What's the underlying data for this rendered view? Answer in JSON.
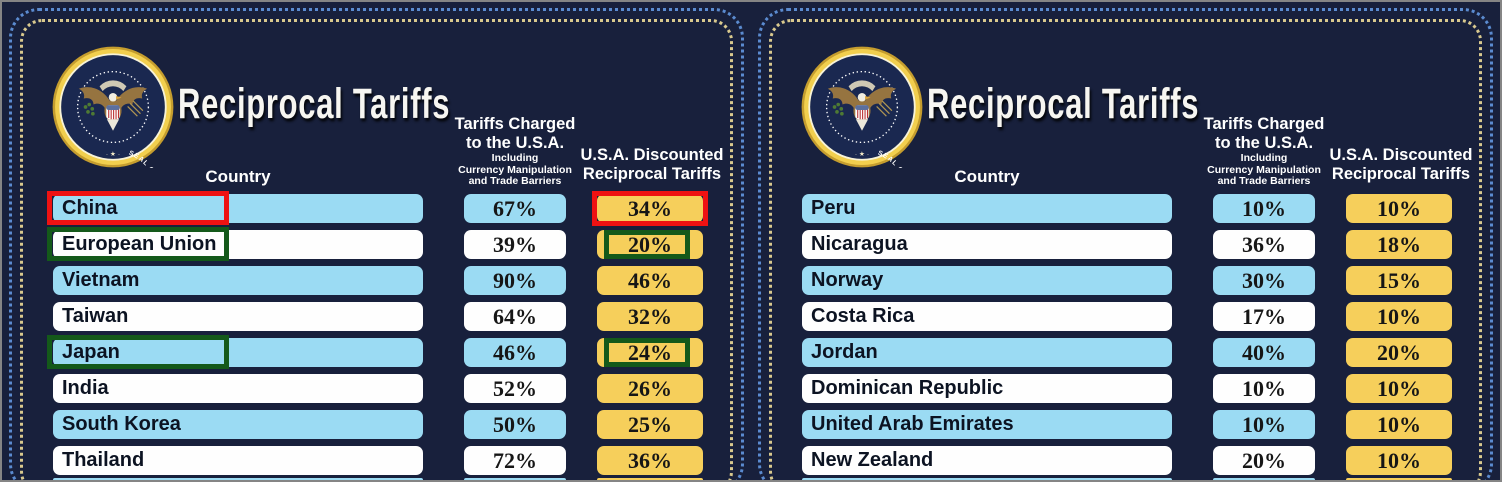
{
  "colors": {
    "background": "#18203c",
    "row_blue": "#9bdbf3",
    "row_white": "#fefefe",
    "tariff_yellow": "#f6cf5b",
    "dot_border_blue": "#5b8bd0",
    "dot_border_gold": "#d9c98e",
    "annotation_red": "#ee1212",
    "annotation_green": "#14591a",
    "seal_gold": "#f2cf4e"
  },
  "seal": {
    "ring_text": "SEAL OF THE PRESIDENT OF THE UNITED STATES",
    "ring_separator": "· ★ ·"
  },
  "panels": [
    {
      "title": "Reciprocal Tariffs",
      "columns": {
        "country": "Country",
        "charged_line1": "Tariffs Charged",
        "charged_line2": "to the U.S.A.",
        "charged_sub1": "Including",
        "charged_sub2": "Currency Manipulation",
        "charged_sub3": "and Trade Barriers",
        "discounted_line1": "U.S.A. Discounted",
        "discounted_line2": "Reciprocal Tariffs"
      },
      "rows": [
        {
          "country": "China",
          "charged": "67%",
          "discounted": "34%",
          "style": "blue",
          "country_highlight": "red",
          "discounted_highlight": "red"
        },
        {
          "country": "European Union",
          "charged": "39%",
          "discounted": "20%",
          "style": "white",
          "country_highlight": "green",
          "discounted_highlight": "green"
        },
        {
          "country": "Vietnam",
          "charged": "90%",
          "discounted": "46%",
          "style": "blue",
          "country_highlight": null,
          "discounted_highlight": null
        },
        {
          "country": "Taiwan",
          "charged": "64%",
          "discounted": "32%",
          "style": "white",
          "country_highlight": null,
          "discounted_highlight": null
        },
        {
          "country": "Japan",
          "charged": "46%",
          "discounted": "24%",
          "style": "blue",
          "country_highlight": "green",
          "discounted_highlight": "green"
        },
        {
          "country": "India",
          "charged": "52%",
          "discounted": "26%",
          "style": "white",
          "country_highlight": null,
          "discounted_highlight": null
        },
        {
          "country": "South Korea",
          "charged": "50%",
          "discounted": "25%",
          "style": "blue",
          "country_highlight": null,
          "discounted_highlight": null
        },
        {
          "country": "Thailand",
          "charged": "72%",
          "discounted": "36%",
          "style": "white",
          "country_highlight": null,
          "discounted_highlight": null
        }
      ],
      "partial_next_row_visible": true
    },
    {
      "title": "Reciprocal Tariffs",
      "columns": {
        "country": "Country",
        "charged_line1": "Tariffs Charged",
        "charged_line2": "to the U.S.A.",
        "charged_sub1": "Including",
        "charged_sub2": "Currency Manipulation",
        "charged_sub3": "and Trade Barriers",
        "discounted_line1": "U.S.A. Discounted",
        "discounted_line2": "Reciprocal Tariffs"
      },
      "rows": [
        {
          "country": "Peru",
          "charged": "10%",
          "discounted": "10%",
          "style": "blue",
          "country_highlight": null,
          "discounted_highlight": null
        },
        {
          "country": "Nicaragua",
          "charged": "36%",
          "discounted": "18%",
          "style": "white",
          "country_highlight": null,
          "discounted_highlight": null
        },
        {
          "country": "Norway",
          "charged": "30%",
          "discounted": "15%",
          "style": "blue",
          "country_highlight": null,
          "discounted_highlight": null
        },
        {
          "country": "Costa Rica",
          "charged": "17%",
          "discounted": "10%",
          "style": "white",
          "country_highlight": null,
          "discounted_highlight": null
        },
        {
          "country": "Jordan",
          "charged": "40%",
          "discounted": "20%",
          "style": "blue",
          "country_highlight": null,
          "discounted_highlight": null
        },
        {
          "country": "Dominican Republic",
          "charged": "10%",
          "discounted": "10%",
          "style": "white",
          "country_highlight": null,
          "discounted_highlight": null
        },
        {
          "country": "United Arab Emirates",
          "charged": "10%",
          "discounted": "10%",
          "style": "blue",
          "country_highlight": null,
          "discounted_highlight": null
        },
        {
          "country": "New Zealand",
          "charged": "20%",
          "discounted": "10%",
          "style": "white",
          "country_highlight": null,
          "discounted_highlight": null
        }
      ],
      "partial_next_row_visible": true
    }
  ],
  "chart_data": [
    {
      "type": "table",
      "title": "Reciprocal Tariffs",
      "columns": [
        "Country",
        "Tariffs Charged to the U.S.A. Including Currency Manipulation and Trade Barriers",
        "U.S.A. Discounted Reciprocal Tariffs"
      ],
      "rows": [
        [
          "China",
          "67%",
          "34%"
        ],
        [
          "European Union",
          "39%",
          "20%"
        ],
        [
          "Vietnam",
          "90%",
          "46%"
        ],
        [
          "Taiwan",
          "64%",
          "32%"
        ],
        [
          "Japan",
          "46%",
          "24%"
        ],
        [
          "India",
          "52%",
          "26%"
        ],
        [
          "South Korea",
          "50%",
          "25%"
        ],
        [
          "Thailand",
          "72%",
          "36%"
        ]
      ],
      "annotations": [
        {
          "row": "China",
          "color": "red",
          "marked": [
            "country",
            "discounted"
          ]
        },
        {
          "row": "European Union",
          "color": "green",
          "marked": [
            "country",
            "discounted"
          ]
        },
        {
          "row": "Japan",
          "color": "green",
          "marked": [
            "country",
            "discounted"
          ]
        }
      ]
    },
    {
      "type": "table",
      "title": "Reciprocal Tariffs",
      "columns": [
        "Country",
        "Tariffs Charged to the U.S.A. Including Currency Manipulation and Trade Barriers",
        "U.S.A. Discounted Reciprocal Tariffs"
      ],
      "rows": [
        [
          "Peru",
          "10%",
          "10%"
        ],
        [
          "Nicaragua",
          "36%",
          "18%"
        ],
        [
          "Norway",
          "30%",
          "15%"
        ],
        [
          "Costa Rica",
          "17%",
          "10%"
        ],
        [
          "Jordan",
          "40%",
          "20%"
        ],
        [
          "Dominican Republic",
          "10%",
          "10%"
        ],
        [
          "United Arab Emirates",
          "10%",
          "10%"
        ],
        [
          "New Zealand",
          "20%",
          "10%"
        ]
      ],
      "annotations": []
    }
  ]
}
